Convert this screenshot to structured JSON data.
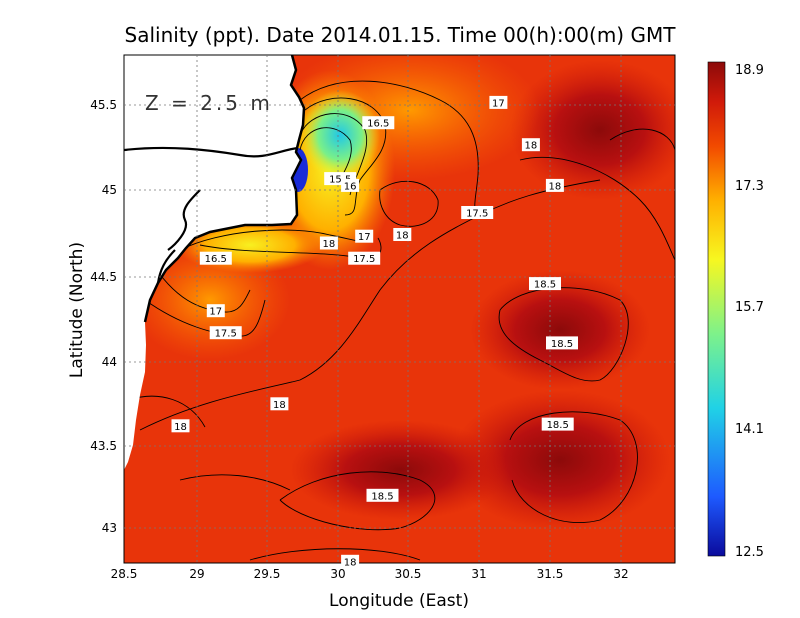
{
  "chart_data": {
    "type": "heatmap",
    "title": "Salinity (ppt). Date 2014.01.15. Time 00(h):00(m) GMT",
    "xlabel": "Longitude (East)",
    "ylabel": "Latitude (North)",
    "annotation": "Z = 2.5 m",
    "xlim": [
      28.5,
      32.4
    ],
    "ylim": [
      42.8,
      45.8
    ],
    "xticks": [
      "28.5",
      "29",
      "29.5",
      "30",
      "30.5",
      "31",
      "31.5",
      "32"
    ],
    "yticks": [
      "43",
      "43.5",
      "44",
      "44.5",
      "45",
      "45.5"
    ],
    "grid": true,
    "colorbar": {
      "ticks": [
        "18.9",
        "17.3",
        "15.7",
        "14.1",
        "12.5"
      ],
      "range": [
        12.5,
        18.9
      ],
      "colors": [
        "#0a0a9c",
        "#1e5aff",
        "#20d2e6",
        "#7ef28a",
        "#f7f720",
        "#ffb000",
        "#f24a00",
        "#d01a0a",
        "#8c0a0a"
      ]
    },
    "contour_labels": [
      {
        "text": "17",
        "x": 31.15,
        "y": 45.52
      },
      {
        "text": "16.5",
        "x": 30.3,
        "y": 45.4
      },
      {
        "text": "15.5",
        "x": 30.03,
        "y": 45.07
      },
      {
        "text": "16",
        "x": 30.1,
        "y": 45.03
      },
      {
        "text": "18",
        "x": 31.38,
        "y": 45.27
      },
      {
        "text": "18",
        "x": 31.55,
        "y": 45.03
      },
      {
        "text": "17.5",
        "x": 31.0,
        "y": 44.87
      },
      {
        "text": "17",
        "x": 30.2,
        "y": 44.73
      },
      {
        "text": "18",
        "x": 30.47,
        "y": 44.74
      },
      {
        "text": "18",
        "x": 29.95,
        "y": 44.69
      },
      {
        "text": "17.5",
        "x": 30.2,
        "y": 44.6
      },
      {
        "text": "16.5",
        "x": 29.15,
        "y": 44.6
      },
      {
        "text": "17",
        "x": 29.15,
        "y": 44.29
      },
      {
        "text": "17.5",
        "x": 29.22,
        "y": 44.16
      },
      {
        "text": "18.5",
        "x": 31.48,
        "y": 44.45
      },
      {
        "text": "18.5",
        "x": 31.6,
        "y": 44.1
      },
      {
        "text": "18",
        "x": 29.6,
        "y": 43.74
      },
      {
        "text": "18",
        "x": 28.9,
        "y": 43.61
      },
      {
        "text": "18.5",
        "x": 31.57,
        "y": 43.62
      },
      {
        "text": "18.5",
        "x": 30.33,
        "y": 43.2
      },
      {
        "text": "18",
        "x": 30.1,
        "y": 42.81
      }
    ]
  }
}
